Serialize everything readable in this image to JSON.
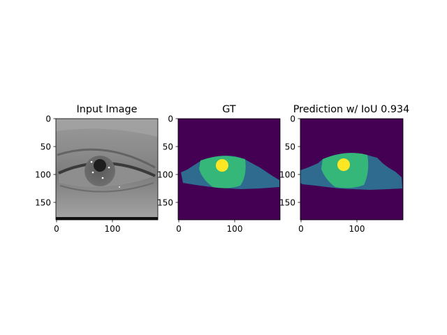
{
  "panels": [
    {
      "title": "Input Image",
      "yticks": [
        "0",
        "50",
        "100",
        "150"
      ],
      "xticks": [
        "0",
        "100"
      ]
    },
    {
      "title": "GT",
      "yticks": [
        "0",
        "50",
        "100",
        "150"
      ],
      "xticks": [
        "0",
        "100"
      ]
    },
    {
      "title": "Prediction w/ IoU 0.934",
      "yticks": [
        "0",
        "50",
        "100",
        "150"
      ],
      "xticks": [
        "0",
        "100"
      ]
    }
  ],
  "colors": {
    "background_class": "#440154",
    "sclera_class": "#2f6b8e",
    "iris_class": "#35b779",
    "pupil_class": "#fde725"
  }
}
